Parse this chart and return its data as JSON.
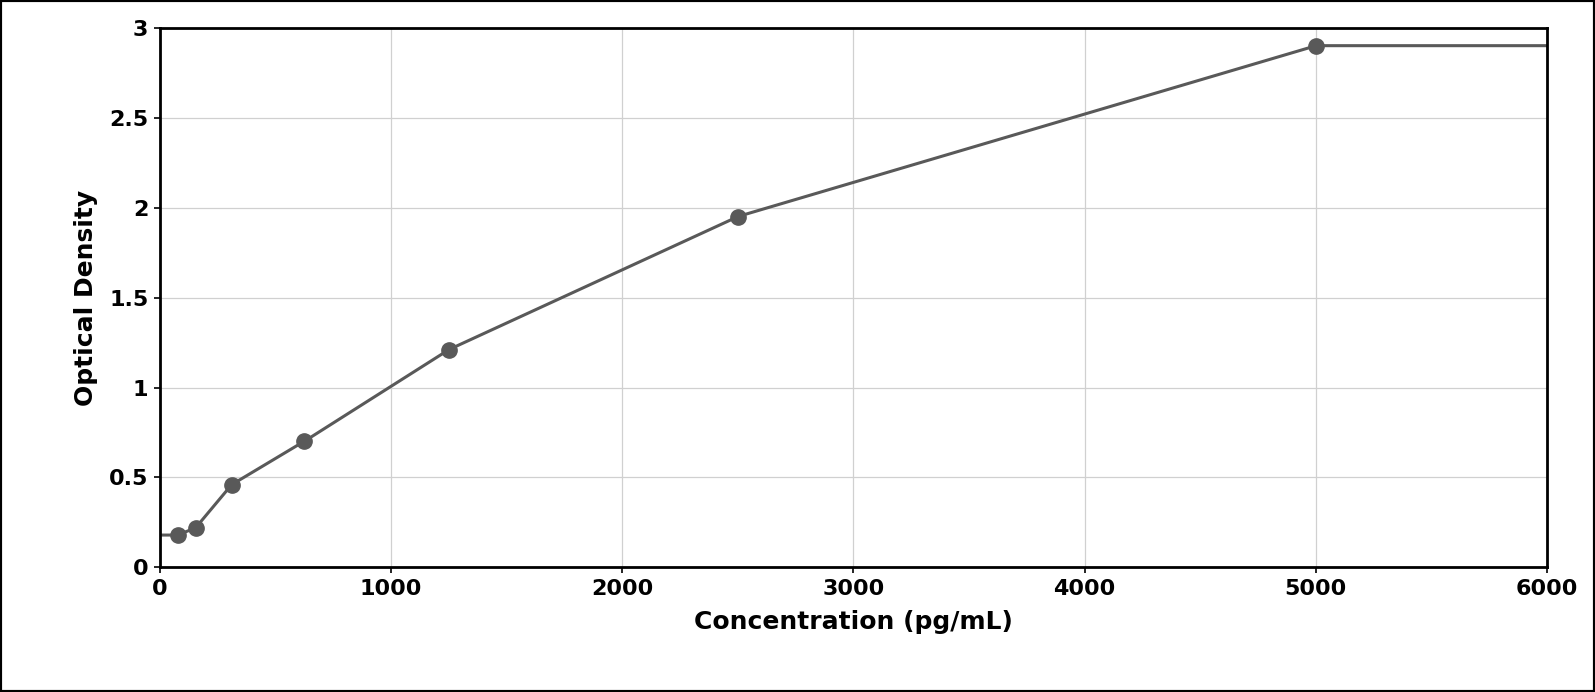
{
  "x_data": [
    78,
    156,
    312,
    625,
    1250,
    2500,
    5000
  ],
  "y_data": [
    0.18,
    0.22,
    0.46,
    0.7,
    1.21,
    1.95,
    2.9
  ],
  "xlabel": "Concentration (pg/mL)",
  "ylabel": "Optical Density",
  "xlim": [
    0,
    6000
  ],
  "ylim": [
    0,
    3.0
  ],
  "xticks": [
    0,
    1000,
    2000,
    3000,
    4000,
    5000,
    6000
  ],
  "yticks": [
    0,
    0.5,
    1.0,
    1.5,
    2.0,
    2.5,
    3.0
  ],
  "ytick_labels": [
    "0",
    "0.5",
    "1",
    "1.5",
    "2",
    "2.5",
    "3"
  ],
  "xtick_labels": [
    "0",
    "1000",
    "2000",
    "3000",
    "4000",
    "5000",
    "6000"
  ],
  "marker_color": "#595959",
  "line_color": "#595959",
  "grid_color": "#d0d0d0",
  "background_color": "#ffffff",
  "border_color": "#000000",
  "xlabel_fontsize": 18,
  "ylabel_fontsize": 18,
  "tick_fontsize": 16,
  "marker_size": 11,
  "line_width": 2.2,
  "fig_width": 15.95,
  "fig_height": 6.92,
  "outer_border_lw": 3.0
}
